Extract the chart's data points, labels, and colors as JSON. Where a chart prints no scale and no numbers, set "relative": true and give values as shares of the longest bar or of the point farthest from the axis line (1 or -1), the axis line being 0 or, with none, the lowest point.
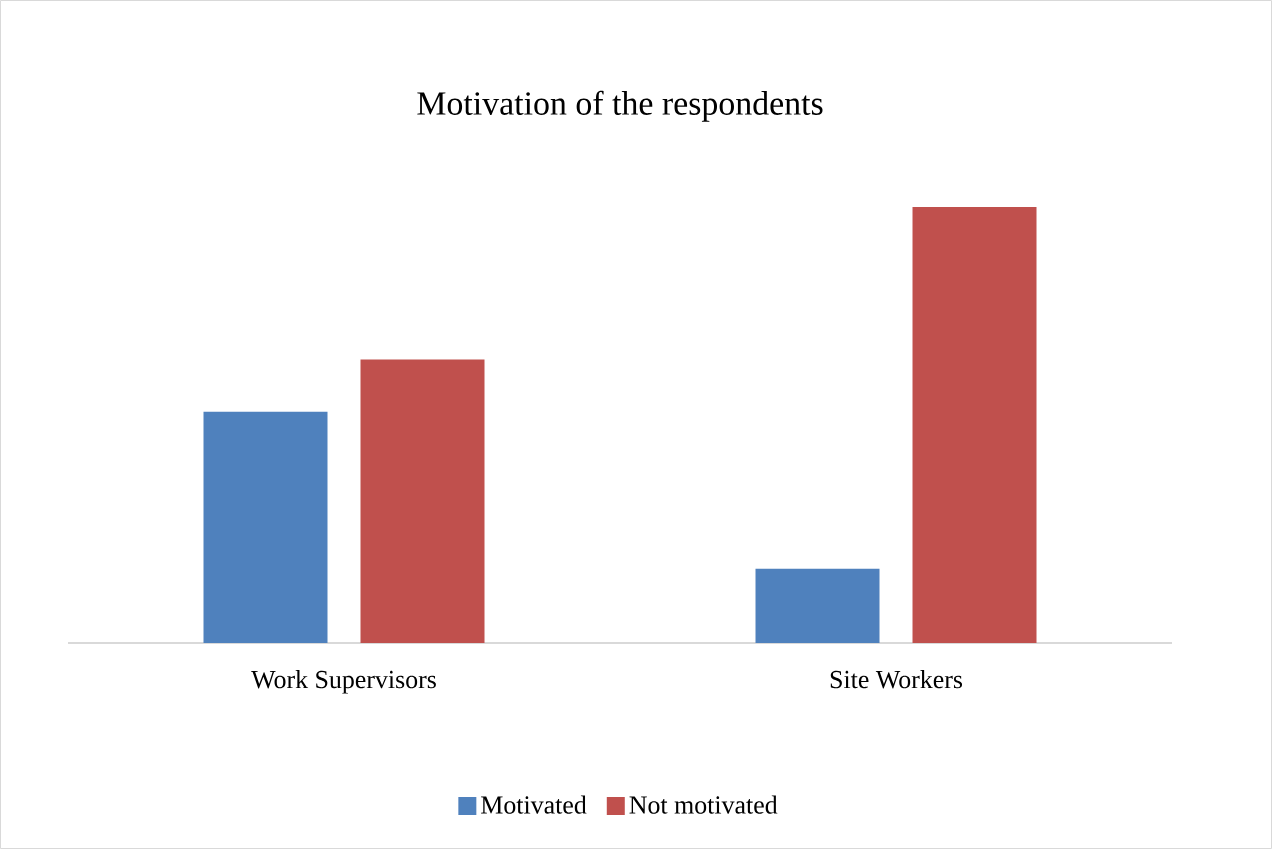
{
  "chart_data": {
    "type": "bar",
    "title": "Motivation of the respondents",
    "relative": true,
    "legend": "bottom",
    "categories": [
      "Work Supervisors",
      "Site Workers"
    ],
    "series": [
      {
        "name": "Motivated",
        "color": "#4f81bd",
        "values": [
          0.53,
          0.17
        ]
      },
      {
        "name": "Not motivated",
        "color": "#c0504d",
        "values": [
          0.65,
          1
        ]
      }
    ]
  }
}
